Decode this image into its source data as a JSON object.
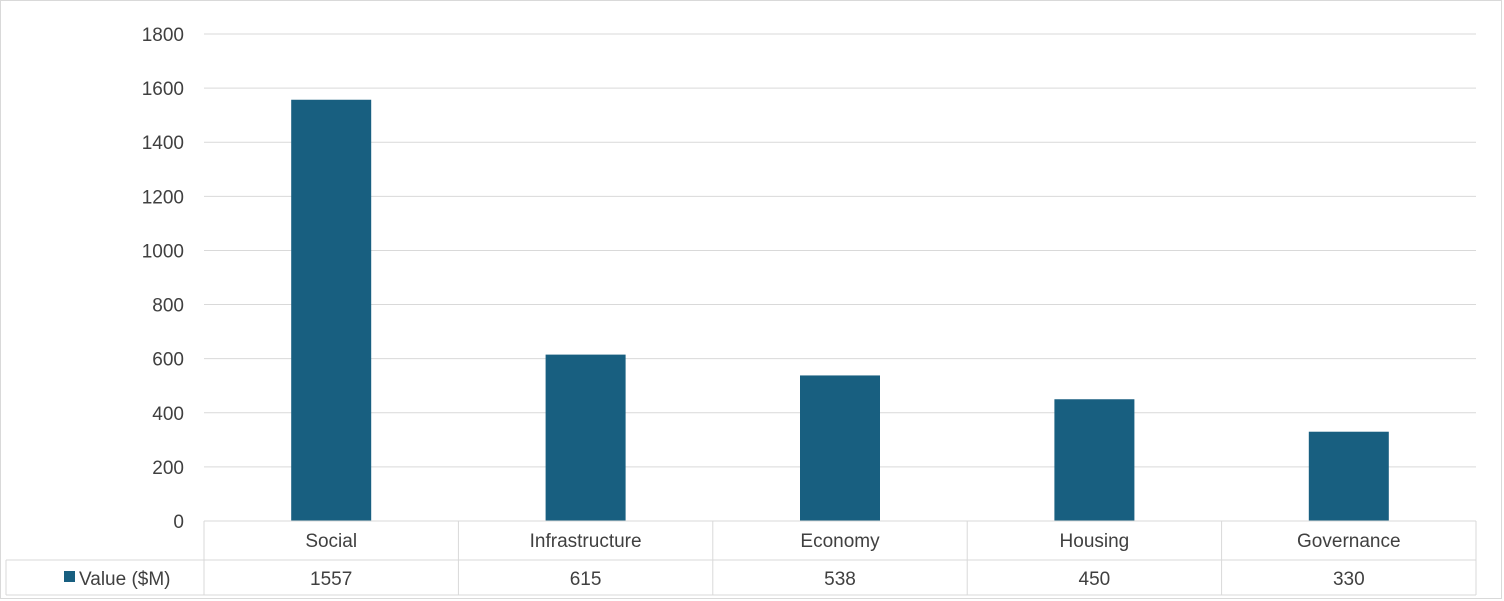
{
  "chart_data": {
    "type": "bar",
    "categories": [
      "Social",
      "Infrastructure",
      "Economy",
      "Housing",
      "Governance"
    ],
    "series": [
      {
        "name": "Value ($M)",
        "values": [
          1557,
          615,
          538,
          450,
          330
        ],
        "color": "#185f80"
      }
    ],
    "ylim": [
      0,
      1800
    ],
    "yticks": [
      0,
      200,
      400,
      600,
      800,
      1000,
      1200,
      1400,
      1600,
      1800
    ],
    "grid": true,
    "legend": "data-table",
    "title": "",
    "xlabel": "",
    "ylabel": ""
  },
  "colors": {
    "bar": "#185f80",
    "grid": "#d9d9d9",
    "text": "#404040"
  },
  "legend_icon": "square-icon"
}
